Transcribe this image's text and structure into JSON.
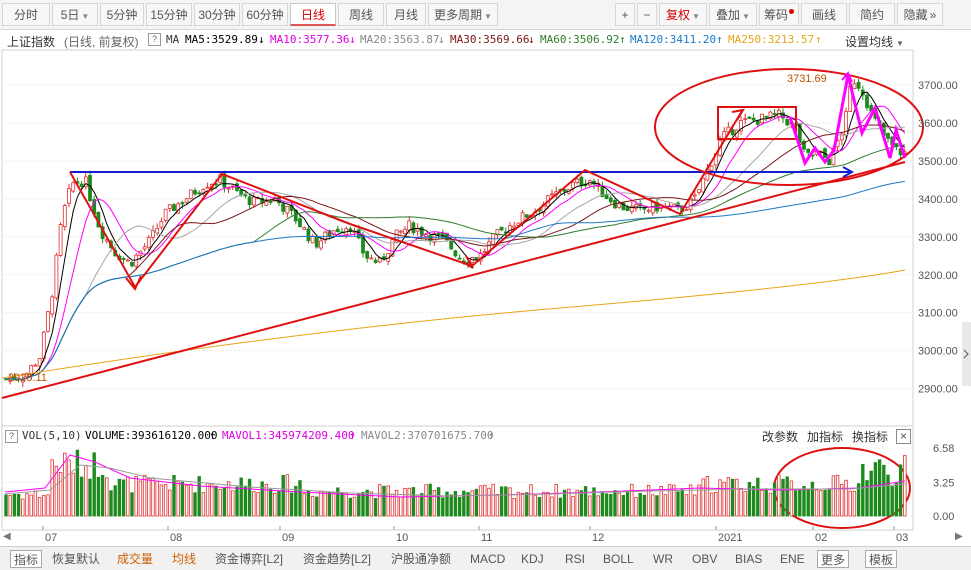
{
  "toolbar": {
    "buttons": [
      {
        "label": "分时",
        "dropdown": false
      },
      {
        "label": "5日",
        "dropdown": true
      },
      {
        "label": "5分钟",
        "dropdown": false
      },
      {
        "label": "15分钟",
        "dropdown": false
      },
      {
        "label": "30分钟",
        "dropdown": false
      },
      {
        "label": "60分钟",
        "dropdown": false
      },
      {
        "label": "日线",
        "dropdown": false,
        "active": true
      },
      {
        "label": "周线",
        "dropdown": false
      },
      {
        "label": "月线",
        "dropdown": false
      },
      {
        "label": "更多周期",
        "dropdown": true
      }
    ],
    "right": {
      "zoom_in": "+",
      "zoom_out": "−",
      "fuquan": "复权",
      "diejia": "叠加",
      "chouma": "筹码",
      "huaxian": "画线",
      "jianyue": "简约",
      "yincang": "隐藏",
      "more_icon": "»"
    }
  },
  "legend": {
    "index_name": "上证指数",
    "mode": "(日线, 前复权)",
    "help": "?",
    "ma_label": "MA",
    "ma5": "MA5:3529.89",
    "ma10": "MA10:3577.36",
    "ma20": "MA20:3563.87",
    "ma30": "MA30:3569.66",
    "ma60": "MA60:3506.92",
    "ma120": "MA120:3411.20",
    "ma250": "MA250:3213.57",
    "settings": "设置均线"
  },
  "colors": {
    "up": "#e03030",
    "down": "#1e8a1e",
    "ma5": "#000000",
    "ma10": "#ff00ff",
    "ma20": "#a6a6a6",
    "ma30": "#7a1616",
    "ma60": "#2e7d2e",
    "ma120": "#1d78c8",
    "ma250": "#e8a317",
    "annotation_red": "#e01010",
    "annotation_blue": "#1020d0",
    "annotation_magenta": "#ff00ff"
  },
  "price_axis": {
    "labels": [
      "3700.00",
      "3600.00",
      "3500.00",
      "3400.00",
      "3300.00",
      "3200.00",
      "3100.00",
      "3000.00",
      "2900.00"
    ],
    "high_label": "3731.69",
    "low_label": "2920.11"
  },
  "volume": {
    "title": "VOL(5,10)",
    "help": "?",
    "volume": "VOLUME:393616120.000",
    "mavol1": "MAVOL1:345974209.400",
    "mavol2": "MAVOL2:370701675.700",
    "actions": [
      "改参数",
      "加指标",
      "换指标"
    ],
    "close": "×",
    "axis_labels": [
      "6.58",
      "3.25",
      "0.00"
    ]
  },
  "time_axis": [
    "07",
    "08",
    "09",
    "10",
    "11",
    "12",
    "2021",
    "02",
    "03"
  ],
  "bottom_tabs": [
    {
      "label": "指标",
      "style": "boxed"
    },
    {
      "label": "恢复默认",
      "style": "normal"
    },
    {
      "label": "成交量",
      "style": "orange"
    },
    {
      "label": "均线",
      "style": "orange"
    },
    {
      "label": "资金博弈[L2]",
      "style": "normal"
    },
    {
      "label": "资金趋势[L2]",
      "style": "normal"
    },
    {
      "label": "沪股通净额",
      "style": "normal"
    },
    {
      "label": "MACD",
      "style": "normal"
    },
    {
      "label": "KDJ",
      "style": "normal"
    },
    {
      "label": "RSI",
      "style": "normal"
    },
    {
      "label": "BOLL",
      "style": "normal"
    },
    {
      "label": "WR",
      "style": "normal"
    },
    {
      "label": "OBV",
      "style": "normal"
    },
    {
      "label": "BIAS",
      "style": "normal"
    },
    {
      "label": "ENE",
      "style": "normal"
    },
    {
      "label": "更多",
      "style": "boxed"
    },
    {
      "label": "模板",
      "style": "boxed"
    }
  ]
}
